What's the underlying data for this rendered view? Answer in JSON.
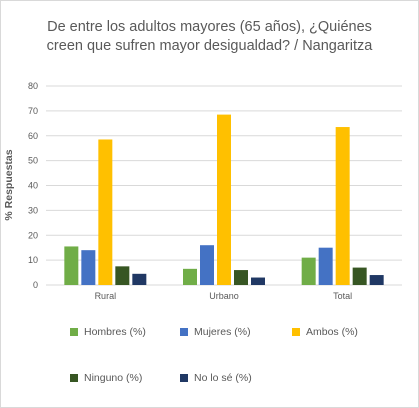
{
  "chart_data": {
    "type": "bar",
    "title": "De entre los adultos mayores (65 años), ¿Quiénes creen que sufren mayor desigualdad? / Nangaritza",
    "title_lines": [
      "De entre los adultos mayores (65 años), ¿Quiénes",
      "creen que sufren mayor desigualdad? / Nangaritza"
    ],
    "xlabel": "",
    "ylabel": "% Respuestas",
    "ylim": [
      0,
      80
    ],
    "yticks": [
      0,
      10,
      20,
      30,
      40,
      50,
      60,
      70,
      80
    ],
    "grid": true,
    "legend_position": "bottom",
    "categories": [
      "Rural",
      "Urbano",
      "Total"
    ],
    "series": [
      {
        "name": "Hombres (%)",
        "color": "#70ad47",
        "values": [
          15.5,
          6.5,
          11
        ]
      },
      {
        "name": "Mujeres (%)",
        "color": "#4472c4",
        "values": [
          14,
          16,
          15
        ]
      },
      {
        "name": "Ambos (%)",
        "color": "#ffc000",
        "values": [
          58.5,
          68.5,
          63.5
        ]
      },
      {
        "name": "Ninguno (%)",
        "color": "#375623",
        "values": [
          7.5,
          6,
          7
        ]
      },
      {
        "name": "No lo sé (%)",
        "color": "#203864",
        "values": [
          4.5,
          3,
          4
        ]
      }
    ]
  }
}
